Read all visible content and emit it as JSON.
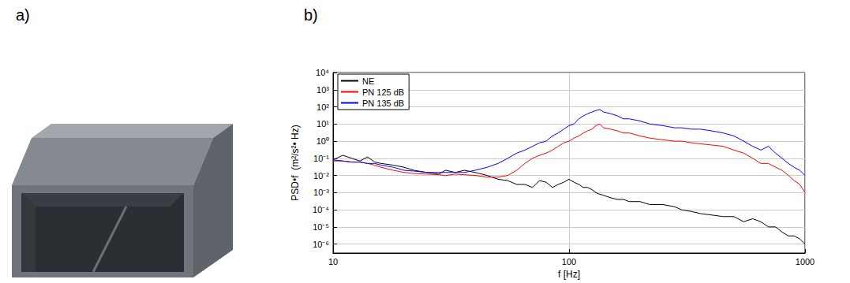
{
  "panel_labels": [
    "a)",
    "b)"
  ],
  "chart_data": {
    "type": "line",
    "x_label": "f [Hz]",
    "y_label": "PSD•f  (m²/s²• Hz)",
    "x": [
      10,
      11,
      12,
      13,
      14,
      15,
      16,
      18,
      20,
      22,
      25,
      28,
      30,
      33,
      36,
      40,
      45,
      50,
      55,
      60,
      65,
      70,
      75,
      80,
      85,
      90,
      95,
      100,
      105,
      110,
      115,
      120,
      125,
      130,
      135,
      140,
      150,
      160,
      170,
      180,
      200,
      220,
      250,
      280,
      300,
      330,
      360,
      400,
      450,
      500,
      550,
      600,
      650,
      700,
      750,
      800,
      850,
      900,
      950,
      1000
    ],
    "series": [
      {
        "name": "NE",
        "color": "#000000",
        "values": [
          0.08,
          0.15,
          0.1,
          0.07,
          0.12,
          0.06,
          0.05,
          0.04,
          0.03,
          0.02,
          0.015,
          0.012,
          0.02,
          0.015,
          0.02,
          0.015,
          0.01,
          0.006,
          0.005,
          0.003,
          0.003,
          0.002,
          0.005,
          0.004,
          0.002,
          0.003,
          0.004,
          0.006,
          0.004,
          0.003,
          0.002,
          0.002,
          0.0015,
          0.001,
          0.0008,
          0.0007,
          0.0005,
          0.0004,
          0.0004,
          0.0003,
          0.0003,
          0.0002,
          0.0002,
          0.00015,
          0.0001,
          8e-05,
          6e-05,
          5e-05,
          4e-05,
          4e-05,
          2e-05,
          3e-05,
          2e-05,
          1e-05,
          1e-05,
          5e-06,
          3e-06,
          3e-06,
          2e-06,
          1e-06
        ]
      },
      {
        "name": "PN 125 dB",
        "color": "#ff0000",
        "values": [
          0.07,
          0.07,
          0.06,
          0.06,
          0.05,
          0.04,
          0.03,
          0.02,
          0.015,
          0.013,
          0.012,
          0.011,
          0.01,
          0.012,
          0.011,
          0.01,
          0.008,
          0.008,
          0.01,
          0.02,
          0.05,
          0.1,
          0.15,
          0.2,
          0.3,
          0.5,
          0.8,
          1,
          1.5,
          2,
          3,
          4,
          5,
          8,
          10,
          6,
          5,
          4,
          3,
          3,
          2,
          1.5,
          1.2,
          1,
          1,
          0.8,
          0.7,
          0.6,
          0.5,
          0.3,
          0.2,
          0.1,
          0.05,
          0.05,
          0.03,
          0.02,
          0.01,
          0.005,
          0.003,
          0.001
        ]
      },
      {
        "name": "PN 135 dB",
        "color": "#0000ff",
        "values": [
          0.08,
          0.07,
          0.06,
          0.06,
          0.05,
          0.05,
          0.04,
          0.03,
          0.02,
          0.018,
          0.015,
          0.015,
          0.015,
          0.015,
          0.015,
          0.02,
          0.03,
          0.05,
          0.1,
          0.2,
          0.3,
          0.5,
          0.8,
          1,
          2,
          3,
          5,
          8,
          10,
          20,
          30,
          40,
          50,
          60,
          70,
          50,
          40,
          30,
          20,
          20,
          15,
          10,
          8,
          6,
          6,
          5,
          5,
          4,
          3,
          2,
          1,
          0.5,
          0.3,
          0.5,
          0.2,
          0.1,
          0.05,
          0.03,
          0.02,
          0.01
        ]
      }
    ],
    "xlim": [
      10,
      1000
    ],
    "ylim": [
      3e-07,
      10000
    ],
    "xticks": [
      10,
      100,
      1000
    ],
    "yticks": [
      {
        "value": 1e-06,
        "label": "10⁻⁶"
      },
      {
        "value": 1e-05,
        "label": "10⁻⁵"
      },
      {
        "value": 0.0001,
        "label": "10⁻⁴"
      },
      {
        "value": 0.001,
        "label": "10⁻³"
      },
      {
        "value": 0.01,
        "label": "10⁻²"
      },
      {
        "value": 0.1,
        "label": "10⁻¹"
      },
      {
        "value": 1,
        "label": "10⁰"
      },
      {
        "value": 10,
        "label": "10¹"
      },
      {
        "value": 100,
        "label": "10²"
      },
      {
        "value": 1000,
        "label": "10³"
      },
      {
        "value": 10000,
        "label": "10⁴"
      }
    ],
    "log": true,
    "grid": true,
    "legend": "upper left"
  }
}
